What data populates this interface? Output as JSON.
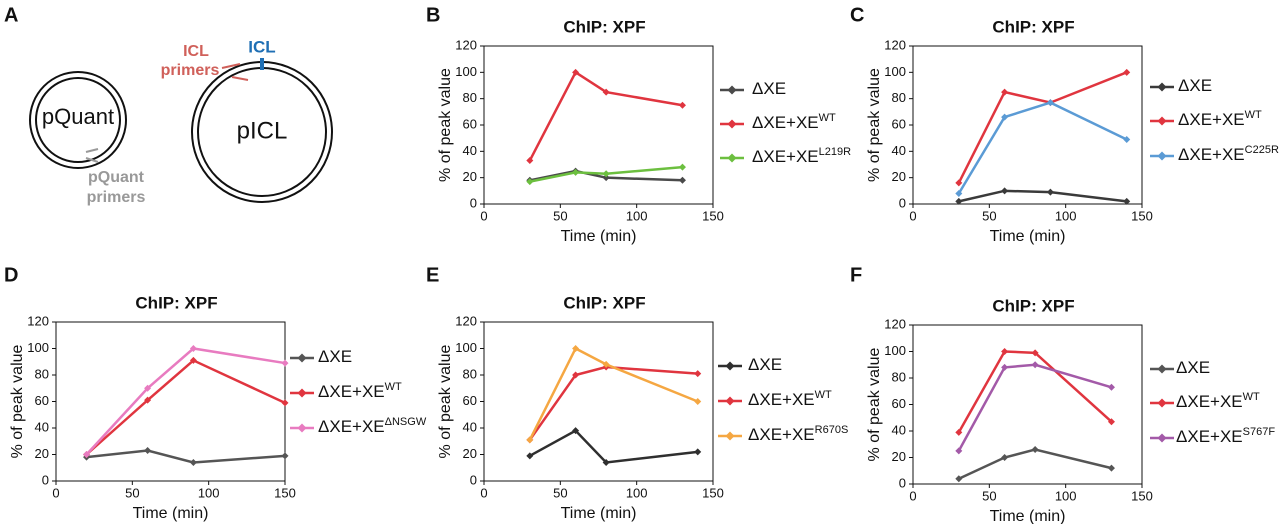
{
  "diagram": {
    "panel": "A",
    "plasmid_1": "pQuant",
    "plasmid_2": "pICL",
    "icl": "ICL",
    "icl_primers": [
      "ICL",
      "primers"
    ],
    "pquant_primers": [
      "pQuant",
      "primers"
    ]
  },
  "chart_data": [
    {
      "panel": "B",
      "type": "line",
      "title": "ChIP: XPF",
      "xlabel": "Time (min)",
      "ylabel": "% of peak value",
      "xlim": [
        0,
        150
      ],
      "xticks": [
        0,
        50,
        100,
        150
      ],
      "ylim": [
        0,
        120
      ],
      "yticks": [
        0,
        20,
        40,
        60,
        80,
        100,
        120
      ],
      "series": [
        {
          "name": "ΔXE",
          "color": "#4a4a4a",
          "x": [
            30,
            60,
            80,
            130
          ],
          "values": [
            18,
            25,
            20,
            18
          ]
        },
        {
          "name": "ΔXE+XE",
          "superscript": "WT",
          "color": "#e0353f",
          "x": [
            30,
            60,
            80,
            130
          ],
          "values": [
            33,
            100,
            85,
            75
          ]
        },
        {
          "name": "ΔXE+XE",
          "superscript": "L219R",
          "color": "#6cbf3f",
          "x": [
            30,
            60,
            80,
            130
          ],
          "values": [
            17,
            24,
            23,
            28
          ]
        }
      ]
    },
    {
      "panel": "C",
      "type": "line",
      "title": "ChIP: XPF",
      "xlabel": "Time (min)",
      "ylabel": "% of peak value",
      "xlim": [
        0,
        150
      ],
      "xticks": [
        0,
        50,
        100,
        150
      ],
      "ylim": [
        0,
        120
      ],
      "yticks": [
        0,
        20,
        40,
        60,
        80,
        100,
        120
      ],
      "series": [
        {
          "name": "ΔXE",
          "color": "#3a3a3a",
          "x": [
            30,
            60,
            90,
            140
          ],
          "values": [
            2,
            10,
            9,
            2
          ]
        },
        {
          "name": "ΔXE+XE",
          "superscript": "WT",
          "color": "#e0353f",
          "x": [
            30,
            60,
            90,
            140
          ],
          "values": [
            16,
            85,
            77,
            100
          ]
        },
        {
          "name": "ΔXE+XE",
          "superscript": "C225R",
          "color": "#5b9bd5",
          "x": [
            30,
            60,
            90,
            140
          ],
          "values": [
            8,
            66,
            77,
            49
          ]
        }
      ]
    },
    {
      "panel": "D",
      "type": "line",
      "title": "ChIP: XPF",
      "xlabel": "Time (min)",
      "ylabel": "% of peak value",
      "xlim": [
        0,
        150
      ],
      "xticks": [
        0,
        50,
        100,
        150
      ],
      "ylim": [
        0,
        120
      ],
      "yticks": [
        0,
        20,
        40,
        60,
        80,
        100,
        120
      ],
      "series": [
        {
          "name": "ΔXE",
          "color": "#555555",
          "x": [
            20,
            60,
            90,
            150
          ],
          "values": [
            18,
            23,
            14,
            19
          ]
        },
        {
          "name": "ΔXE+XE",
          "superscript": "WT",
          "color": "#e0353f",
          "x": [
            20,
            60,
            90,
            150
          ],
          "values": [
            20,
            61,
            91,
            59
          ]
        },
        {
          "name": "ΔXE+XE",
          "superscript": "ΔNSGW",
          "color": "#e87bc0",
          "x": [
            20,
            60,
            90,
            150
          ],
          "values": [
            20,
            70,
            100,
            89
          ]
        }
      ]
    },
    {
      "panel": "E",
      "type": "line",
      "title": "ChIP: XPF",
      "xlabel": "Time (min)",
      "ylabel": "% of peak value",
      "xlim": [
        0,
        150
      ],
      "xticks": [
        0,
        50,
        100,
        150
      ],
      "ylim": [
        0,
        120
      ],
      "yticks": [
        0,
        20,
        40,
        60,
        80,
        100,
        120
      ],
      "series": [
        {
          "name": "ΔXE",
          "color": "#2f2f2f",
          "x": [
            30,
            60,
            80,
            140
          ],
          "values": [
            19,
            38,
            14,
            22
          ]
        },
        {
          "name": "ΔXE+XE",
          "superscript": "WT",
          "color": "#e0353f",
          "x": [
            30,
            60,
            80,
            140
          ],
          "values": [
            31,
            80,
            86,
            81
          ]
        },
        {
          "name": "ΔXE+XE",
          "superscript": "R670S",
          "color": "#f5a742",
          "x": [
            30,
            60,
            80,
            140
          ],
          "values": [
            31,
            100,
            88,
            60
          ]
        }
      ]
    },
    {
      "panel": "F",
      "type": "line",
      "title": "ChIP: XPF",
      "xlabel": "Time (min)",
      "ylabel": "% of peak value",
      "xlim": [
        0,
        150
      ],
      "xticks": [
        0,
        50,
        100,
        150
      ],
      "ylim": [
        0,
        120
      ],
      "yticks": [
        0,
        20,
        40,
        60,
        80,
        100,
        120
      ],
      "series": [
        {
          "name": "ΔXE",
          "color": "#555555",
          "x": [
            30,
            60,
            80,
            130
          ],
          "values": [
            4,
            20,
            26,
            12
          ]
        },
        {
          "name": "ΔXE+XE",
          "superscript": "WT",
          "color": "#e0353f",
          "x": [
            30,
            60,
            80,
            130
          ],
          "values": [
            39,
            100,
            99,
            47
          ]
        },
        {
          "name": "ΔXE+XE",
          "superscript": "S767F",
          "color": "#a35aa8",
          "x": [
            30,
            60,
            80,
            130
          ],
          "values": [
            25,
            88,
            90,
            73
          ]
        }
      ]
    }
  ]
}
